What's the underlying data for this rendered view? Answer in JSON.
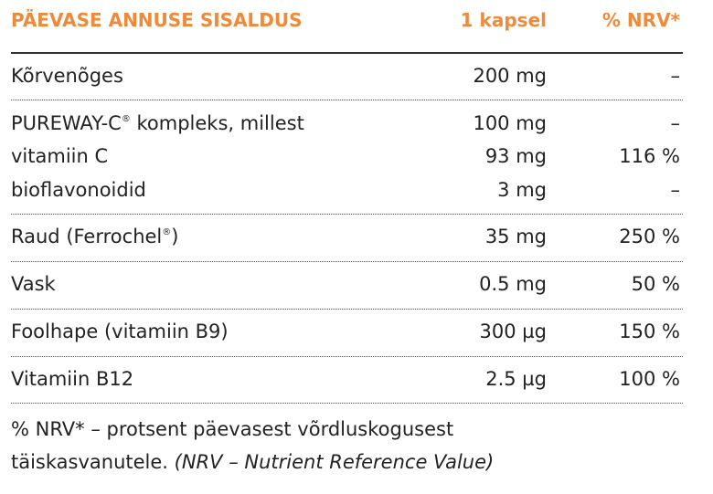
{
  "header": {
    "name": "PÄEVASE ANNUSE SISALDUS",
    "dose": "1 kapsel",
    "nrv": "% NRV*"
  },
  "rows": [
    {
      "name": "Kõrvenõges",
      "dose": "200 mg",
      "nrv": "–"
    },
    {
      "name": "PUREWAY-C",
      "name_suffix": " kompleks, millest",
      "dose": "100 mg",
      "nrv": "–"
    },
    {
      "name": "vitamiin C",
      "dose": "93 mg",
      "nrv": "116 %"
    },
    {
      "name": "bioflavonoidid",
      "dose": "3 mg",
      "nrv": "–"
    },
    {
      "name": "Raud (Ferrochel",
      "name_suffix": ")",
      "dose": "35 mg",
      "nrv": "250 %"
    },
    {
      "name": "Vask",
      "dose": "0.5 mg",
      "nrv": "50 %"
    },
    {
      "name": "Foolhape (vitamiin B9)",
      "dose": "300 µg",
      "nrv": "150 %"
    },
    {
      "name": "Vitamiin B12",
      "dose": "2.5 µg",
      "nrv": "100 %"
    }
  ],
  "registered_mark": "®",
  "footnote": {
    "line1": "% NRV* – protsent päevasest võrdluskogusest",
    "line2_plain": "täiskasvanutele. ",
    "line2_italic": "(NRV – Nutrient Reference Value)"
  },
  "colors": {
    "header": "#ef8a3a",
    "text": "#222222"
  }
}
